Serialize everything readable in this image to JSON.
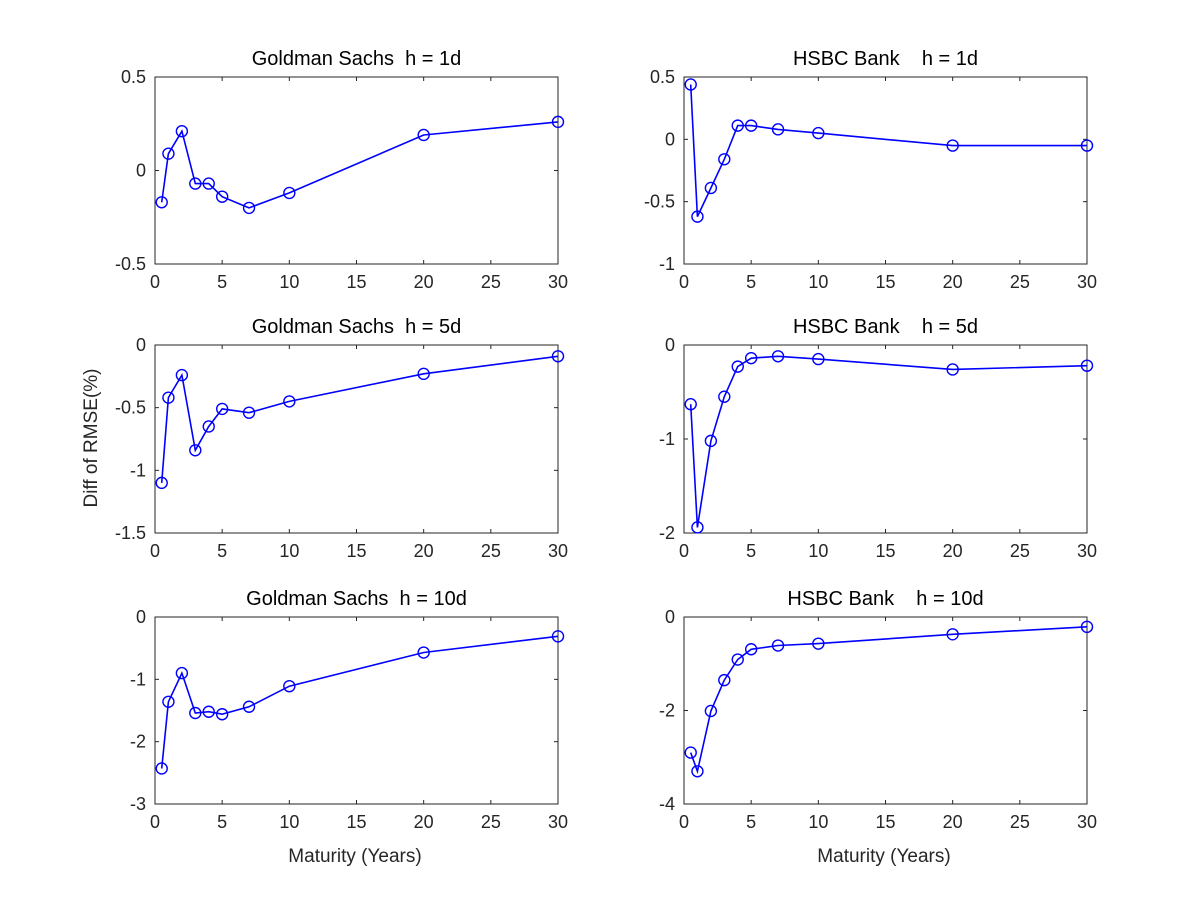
{
  "colors": {
    "series": "#0000ff",
    "axes": "#262626",
    "background": "#ffffff"
  },
  "labels": {
    "ylabel": "Diff of RMSE(%)",
    "xlabel": "Maturity (Years)"
  },
  "chart_data": [
    {
      "type": "line",
      "title": "Goldman Sachs  h = 1d",
      "xlim": [
        0,
        30
      ],
      "ylim": [
        -0.5,
        0.5
      ],
      "xticks": [
        0,
        5,
        10,
        15,
        20,
        25,
        30
      ],
      "yticks": [
        -0.5,
        0,
        0.5
      ],
      "xticklabels": [
        "0",
        "5",
        "10",
        "15",
        "20",
        "25",
        "30"
      ],
      "yticklabels": [
        "-0.5",
        "0",
        "0.5"
      ],
      "marker": "circle",
      "x": [
        0.5,
        1,
        2,
        3,
        4,
        5,
        7,
        10,
        20,
        30
      ],
      "y": [
        -0.17,
        0.09,
        0.21,
        -0.07,
        -0.07,
        -0.14,
        -0.2,
        -0.12,
        0.19,
        0.26
      ]
    },
    {
      "type": "line",
      "title": "HSBC Bank    h = 1d",
      "xlim": [
        0,
        30
      ],
      "ylim": [
        -1,
        0.5
      ],
      "xticks": [
        0,
        5,
        10,
        15,
        20,
        25,
        30
      ],
      "yticks": [
        -1,
        -0.5,
        0,
        0.5
      ],
      "xticklabels": [
        "0",
        "5",
        "10",
        "15",
        "20",
        "25",
        "30"
      ],
      "yticklabels": [
        "-1",
        "-0.5",
        "0",
        "0.5"
      ],
      "marker": "circle",
      "x": [
        0.5,
        1,
        2,
        3,
        4,
        5,
        7,
        10,
        20,
        30
      ],
      "y": [
        0.44,
        -0.62,
        -0.39,
        -0.16,
        0.11,
        0.11,
        0.08,
        0.05,
        -0.05,
        -0.05
      ]
    },
    {
      "type": "line",
      "title": "Goldman Sachs  h = 5d",
      "xlim": [
        0,
        30
      ],
      "ylim": [
        -1.5,
        0
      ],
      "xticks": [
        0,
        5,
        10,
        15,
        20,
        25,
        30
      ],
      "yticks": [
        -1.5,
        -1,
        -0.5,
        0
      ],
      "xticklabels": [
        "0",
        "5",
        "10",
        "15",
        "20",
        "25",
        "30"
      ],
      "yticklabels": [
        "-1.5",
        "-1",
        "-0.5",
        "0"
      ],
      "marker": "circle",
      "x": [
        0.5,
        1,
        2,
        3,
        4,
        5,
        7,
        10,
        20,
        30
      ],
      "y": [
        -1.1,
        -0.42,
        -0.24,
        -0.84,
        -0.65,
        -0.51,
        -0.54,
        -0.45,
        -0.23,
        -0.09
      ]
    },
    {
      "type": "line",
      "title": "HSBC Bank    h = 5d",
      "xlim": [
        0,
        30
      ],
      "ylim": [
        -2,
        0
      ],
      "xticks": [
        0,
        5,
        10,
        15,
        20,
        25,
        30
      ],
      "yticks": [
        -2,
        -1,
        0
      ],
      "xticklabels": [
        "0",
        "5",
        "10",
        "15",
        "20",
        "25",
        "30"
      ],
      "yticklabels": [
        "-2",
        "-1",
        "0"
      ],
      "marker": "circle",
      "x": [
        0.5,
        1,
        2,
        3,
        4,
        5,
        7,
        10,
        20,
        30
      ],
      "y": [
        -0.63,
        -1.94,
        -1.02,
        -0.55,
        -0.23,
        -0.14,
        -0.12,
        -0.15,
        -0.26,
        -0.22
      ]
    },
    {
      "type": "line",
      "title": "Goldman Sachs  h = 10d",
      "xlim": [
        0,
        30
      ],
      "ylim": [
        -3,
        0
      ],
      "xticks": [
        0,
        5,
        10,
        15,
        20,
        25,
        30
      ],
      "yticks": [
        -3,
        -2,
        -1,
        0
      ],
      "xticklabels": [
        "0",
        "5",
        "10",
        "15",
        "20",
        "25",
        "30"
      ],
      "yticklabels": [
        "-3",
        "-2",
        "-1",
        "0"
      ],
      "marker": "circle",
      "x": [
        0.5,
        1,
        2,
        3,
        4,
        5,
        7,
        10,
        20,
        30
      ],
      "y": [
        -2.43,
        -1.36,
        -0.9,
        -1.54,
        -1.52,
        -1.56,
        -1.44,
        -1.11,
        -0.57,
        -0.31
      ]
    },
    {
      "type": "line",
      "title": "HSBC Bank    h = 10d",
      "xlim": [
        0,
        30
      ],
      "ylim": [
        -4,
        0
      ],
      "xticks": [
        0,
        5,
        10,
        15,
        20,
        25,
        30
      ],
      "yticks": [
        -4,
        -2,
        0
      ],
      "xticklabels": [
        "0",
        "5",
        "10",
        "15",
        "20",
        "25",
        "30"
      ],
      "yticklabels": [
        "-4",
        "-2",
        "0"
      ],
      "marker": "circle",
      "x": [
        0.5,
        1,
        2,
        3,
        4,
        5,
        7,
        10,
        20,
        30
      ],
      "y": [
        -2.9,
        -3.3,
        -2.01,
        -1.35,
        -0.91,
        -0.69,
        -0.61,
        -0.57,
        -0.37,
        -0.21
      ]
    }
  ]
}
